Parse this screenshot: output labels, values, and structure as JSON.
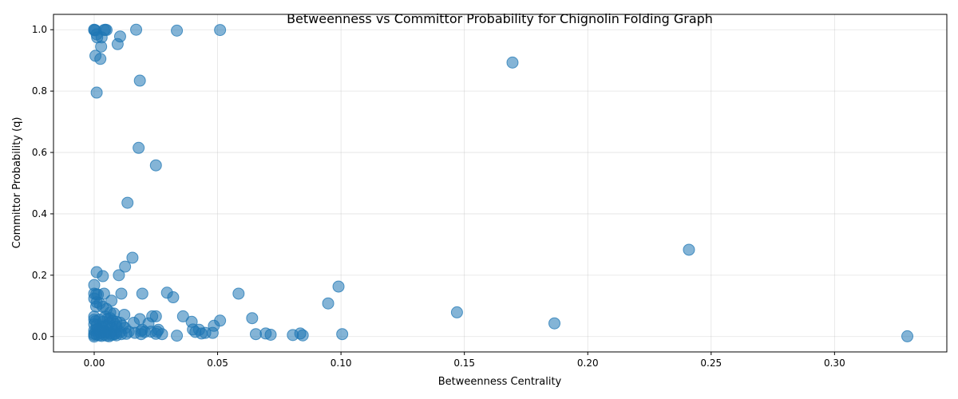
{
  "chart_data": {
    "type": "scatter",
    "title": "Betweenness vs Committor Probability for Chignolin Folding Graph",
    "xlabel": "Betweenness Centrality",
    "ylabel": "Committor Probability (q)",
    "xlim": [
      -0.0165,
      0.3455
    ],
    "ylim": [
      -0.05,
      1.05
    ],
    "xticks": [
      0.0,
      0.05,
      0.1,
      0.15,
      0.2,
      0.25,
      0.3
    ],
    "xtick_labels": [
      "0.00",
      "0.05",
      "0.10",
      "0.15",
      "0.20",
      "0.25",
      "0.30"
    ],
    "yticks": [
      0.0,
      0.2,
      0.4,
      0.6,
      0.8,
      1.0
    ],
    "ytick_labels": [
      "0.0",
      "0.2",
      "0.4",
      "0.6",
      "0.8",
      "1.0"
    ],
    "grid": true,
    "marker_color": "#1f77b4",
    "marker_alpha": 0.55,
    "points": [
      [
        0.0,
        1.0
      ],
      [
        0.0,
        0.999
      ],
      [
        0.0005,
        0.998
      ],
      [
        0.001,
        0.985
      ],
      [
        0.0012,
        0.975
      ],
      [
        0.003,
        0.975
      ],
      [
        0.004,
        0.999
      ],
      [
        0.0045,
        1.0
      ],
      [
        0.005,
        0.999
      ],
      [
        0.0095,
        0.953
      ],
      [
        0.0105,
        0.978
      ],
      [
        0.017,
        1.0
      ],
      [
        0.0335,
        0.997
      ],
      [
        0.051,
        0.999
      ],
      [
        0.0028,
        0.945
      ],
      [
        0.0025,
        0.905
      ],
      [
        0.0005,
        0.915
      ],
      [
        0.001,
        0.795
      ],
      [
        0.0185,
        0.834
      ],
      [
        0.1695,
        0.893
      ],
      [
        0.018,
        0.615
      ],
      [
        0.025,
        0.558
      ],
      [
        0.0135,
        0.436
      ],
      [
        0.241,
        0.283
      ],
      [
        0.0155,
        0.257
      ],
      [
        0.0125,
        0.228
      ],
      [
        0.001,
        0.21
      ],
      [
        0.01,
        0.2
      ],
      [
        0.0035,
        0.197
      ],
      [
        0.0,
        0.168
      ],
      [
        0.099,
        0.163
      ],
      [
        0.0,
        0.14
      ],
      [
        0.0008,
        0.138
      ],
      [
        0.0015,
        0.137
      ],
      [
        0.004,
        0.14
      ],
      [
        0.011,
        0.14
      ],
      [
        0.0195,
        0.14
      ],
      [
        0.0295,
        0.143
      ],
      [
        0.032,
        0.128
      ],
      [
        0.0585,
        0.14
      ],
      [
        0.0,
        0.124
      ],
      [
        0.001,
        0.112
      ],
      [
        0.0022,
        0.108
      ],
      [
        0.007,
        0.117
      ],
      [
        0.0948,
        0.108
      ],
      [
        0.0008,
        0.098
      ],
      [
        0.0035,
        0.097
      ],
      [
        0.005,
        0.09
      ],
      [
        0.0065,
        0.078
      ],
      [
        0.008,
        0.075
      ],
      [
        0.0122,
        0.071
      ],
      [
        0.0235,
        0.066
      ],
      [
        0.025,
        0.066
      ],
      [
        0.036,
        0.066
      ],
      [
        0.064,
        0.06
      ],
      [
        0.147,
        0.079
      ],
      [
        0.0,
        0.065
      ],
      [
        0.0,
        0.055
      ],
      [
        0.0005,
        0.05
      ],
      [
        0.002,
        0.055
      ],
      [
        0.0035,
        0.048
      ],
      [
        0.0055,
        0.058
      ],
      [
        0.0075,
        0.052
      ],
      [
        0.009,
        0.048
      ],
      [
        0.0105,
        0.045
      ],
      [
        0.016,
        0.045
      ],
      [
        0.0185,
        0.057
      ],
      [
        0.022,
        0.043
      ],
      [
        0.0395,
        0.048
      ],
      [
        0.0485,
        0.035
      ],
      [
        0.051,
        0.052
      ],
      [
        0.1865,
        0.043
      ],
      [
        0.0,
        0.04
      ],
      [
        0.001,
        0.038
      ],
      [
        0.003,
        0.032
      ],
      [
        0.005,
        0.036
      ],
      [
        0.007,
        0.03
      ],
      [
        0.009,
        0.032
      ],
      [
        0.0125,
        0.028
      ],
      [
        0.0195,
        0.022
      ],
      [
        0.026,
        0.022
      ],
      [
        0.04,
        0.023
      ],
      [
        0.0425,
        0.022
      ],
      [
        0.0,
        0.02
      ],
      [
        0.0008,
        0.022
      ],
      [
        0.002,
        0.018
      ],
      [
        0.004,
        0.02
      ],
      [
        0.006,
        0.018
      ],
      [
        0.008,
        0.016
      ],
      [
        0.0105,
        0.015
      ],
      [
        0.014,
        0.016
      ],
      [
        0.0165,
        0.012
      ],
      [
        0.019,
        0.018
      ],
      [
        0.0205,
        0.015
      ],
      [
        0.023,
        0.016
      ],
      [
        0.0255,
        0.016
      ],
      [
        0.041,
        0.015
      ],
      [
        0.0435,
        0.01
      ],
      [
        0.045,
        0.012
      ],
      [
        0.048,
        0.012
      ],
      [
        0.0655,
        0.008
      ],
      [
        0.0695,
        0.01
      ],
      [
        0.0715,
        0.006
      ],
      [
        0.0805,
        0.005
      ],
      [
        0.0835,
        0.01
      ],
      [
        0.0845,
        0.004
      ],
      [
        0.1005,
        0.008
      ],
      [
        0.3295,
        0.001
      ],
      [
        0.0,
        0.01
      ],
      [
        0.0,
        0.005
      ],
      [
        0.0,
        0.0
      ],
      [
        0.001,
        0.006
      ],
      [
        0.002,
        0.004
      ],
      [
        0.003,
        0.002
      ],
      [
        0.004,
        0.006
      ],
      [
        0.005,
        0.003
      ],
      [
        0.006,
        0.001
      ],
      [
        0.007,
        0.005
      ],
      [
        0.008,
        0.007
      ],
      [
        0.009,
        0.004
      ],
      [
        0.011,
        0.008
      ],
      [
        0.013,
        0.009
      ],
      [
        0.019,
        0.008
      ],
      [
        0.025,
        0.009
      ],
      [
        0.0275,
        0.008
      ],
      [
        0.0335,
        0.003
      ],
      [
        0.0025,
        0.012
      ],
      [
        0.0045,
        0.014
      ],
      [
        0.0065,
        0.011
      ],
      [
        0.0085,
        0.01
      ],
      [
        0.0015,
        0.025
      ],
      [
        0.0035,
        0.028
      ],
      [
        0.006,
        0.042
      ],
      [
        0.0085,
        0.04
      ],
      [
        0.0115,
        0.035
      ],
      [
        0.0045,
        0.065
      ],
      [
        0.0065,
        0.06
      ]
    ]
  }
}
